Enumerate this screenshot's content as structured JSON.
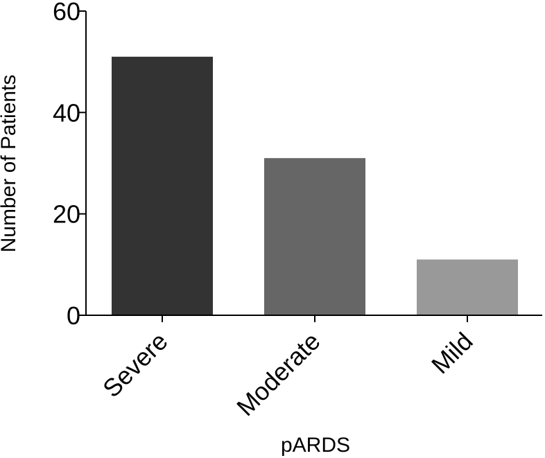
{
  "chart_data": {
    "type": "bar",
    "categories": [
      "Severe",
      "Moderate",
      "Mild"
    ],
    "values": [
      51,
      31,
      11
    ],
    "colors": [
      "#333333",
      "#666666",
      "#999999"
    ],
    "xlabel": "pARDS",
    "ylabel": "Number of Patients",
    "ylim": [
      0,
      60
    ],
    "yticks": [
      0,
      20,
      40,
      60
    ],
    "grid": false
  }
}
